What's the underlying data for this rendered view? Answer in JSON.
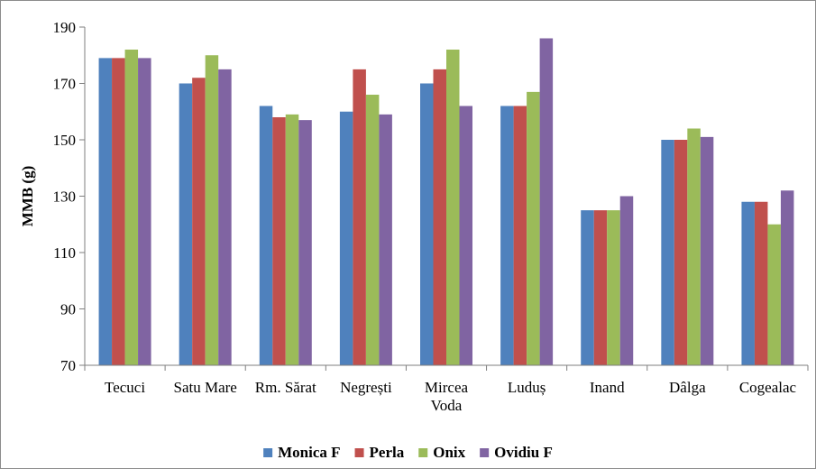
{
  "chart_data": {
    "type": "bar",
    "title": "",
    "xlabel": "",
    "ylabel": "MMB (g)",
    "ylim": [
      70,
      190
    ],
    "yticks": [
      70,
      90,
      110,
      130,
      150,
      170,
      190
    ],
    "grid": false,
    "legend": "bottom",
    "categories": [
      [
        "Tecuci"
      ],
      [
        "Satu Mare"
      ],
      [
        "Rm. Sărat"
      ],
      [
        "Negrești"
      ],
      [
        "Mircea",
        "Voda"
      ],
      [
        "Luduș"
      ],
      [
        "Inand"
      ],
      [
        "Dâlga"
      ],
      [
        "Cogealac"
      ]
    ],
    "series": [
      {
        "name": "Monica F",
        "color": "#4f81bd",
        "values": [
          179,
          170,
          162,
          160,
          170,
          162,
          125,
          150,
          128
        ]
      },
      {
        "name": "Perla",
        "color": "#c0504d",
        "values": [
          179,
          172,
          158,
          175,
          175,
          162,
          125,
          150,
          128
        ]
      },
      {
        "name": "Onix",
        "color": "#9bbb59",
        "values": [
          182,
          180,
          159,
          166,
          182,
          167,
          125,
          154,
          120
        ]
      },
      {
        "name": "Ovidiu F",
        "color": "#8064a2",
        "values": [
          179,
          175,
          157,
          159,
          162,
          186,
          130,
          151,
          132
        ]
      }
    ]
  }
}
